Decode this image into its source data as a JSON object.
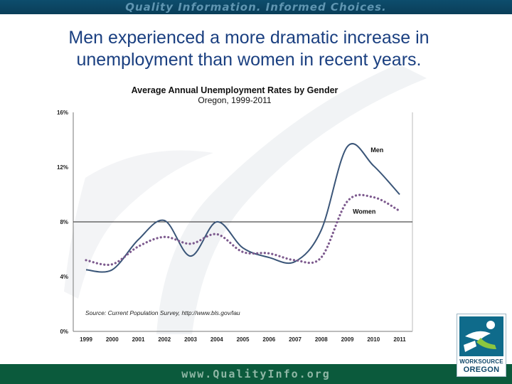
{
  "banner": {
    "tagline": "Quality Information. Informed Choices."
  },
  "headline": {
    "text": "Men experienced a more dramatic increase in unemployment than women in recent years."
  },
  "footer": {
    "url": "www.QualityInfo.org"
  },
  "logo": {
    "line1": "WORKSOURCE",
    "line2": "OREGON"
  },
  "chart_data": {
    "type": "line",
    "title": "Average Annual Unemployment Rates by Gender",
    "subtitle": "Oregon, 1999-2011",
    "source": "Source: Current Population Survey, http://www.bls.gov/lau",
    "x": [
      "1999",
      "2000",
      "2001",
      "2002",
      "2003",
      "2004",
      "2005",
      "2006",
      "2007",
      "2008",
      "2009",
      "2010",
      "2011"
    ],
    "yticks": [
      0,
      4,
      8,
      12,
      16
    ],
    "ytick_labels": [
      "0%",
      "4%",
      "8%",
      "12%",
      "16%"
    ],
    "ylim": [
      0,
      16
    ],
    "reference_line": 8,
    "series": [
      {
        "name": "Men",
        "style": "solid",
        "color": "#3a5578",
        "values": [
          4.5,
          4.5,
          6.7,
          8.1,
          5.5,
          8.0,
          6.1,
          5.4,
          5.1,
          7.4,
          13.5,
          12.1,
          10.0
        ]
      },
      {
        "name": "Women",
        "style": "dotted",
        "color": "#7d5a8e",
        "values": [
          5.2,
          4.9,
          6.2,
          6.9,
          6.4,
          7.1,
          5.8,
          5.7,
          5.2,
          5.4,
          9.5,
          9.8,
          8.8
        ]
      }
    ]
  }
}
